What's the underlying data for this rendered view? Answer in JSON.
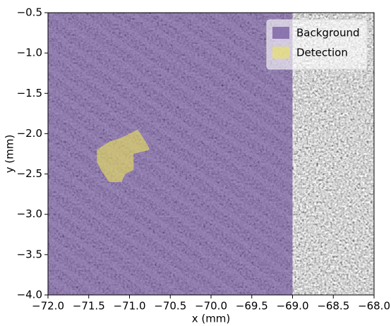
{
  "chart_data": {
    "type": "region",
    "xlabel": "x (mm)",
    "ylabel": "y (mm)",
    "xlim": [
      -72.0,
      -68.0
    ],
    "ylim": [
      -4.0,
      -0.5
    ],
    "xticks": [
      {
        "value": -72.0,
        "label": "−72.0"
      },
      {
        "value": -71.5,
        "label": "−71.5"
      },
      {
        "value": -71.0,
        "label": "−71.0"
      },
      {
        "value": -70.5,
        "label": "−70.5"
      },
      {
        "value": -70.0,
        "label": "−70.0"
      },
      {
        "value": -69.5,
        "label": "−69.5"
      },
      {
        "value": -69.0,
        "label": "−69.0"
      },
      {
        "value": -68.5,
        "label": "−68.5"
      },
      {
        "value": -68.0,
        "label": "−68.0"
      }
    ],
    "yticks": [
      {
        "value": -0.5,
        "label": "−0.5"
      },
      {
        "value": -1.0,
        "label": "−1.0"
      },
      {
        "value": -1.5,
        "label": "−1.5"
      },
      {
        "value": -2.0,
        "label": "−2.0"
      },
      {
        "value": -2.5,
        "label": "−2.5"
      },
      {
        "value": -3.0,
        "label": "−3.0"
      },
      {
        "value": -3.5,
        "label": "−3.5"
      },
      {
        "value": -4.0,
        "label": "−4.0"
      }
    ],
    "alpha": 0.6,
    "legend": "upper right",
    "series": [
      {
        "name": "Background",
        "color": "#5e3d8f",
        "x": [
          -72.0,
          -69.0,
          -69.0,
          -72.0
        ],
        "y": [
          -0.5,
          -0.5,
          -4.0,
          -4.0
        ]
      },
      {
        "name": "Detection",
        "color": "#ece45a",
        "x": [
          -71.4,
          -71.25,
          -71.1,
          -70.9,
          -70.8,
          -70.75,
          -70.95,
          -70.95,
          -71.05,
          -71.1,
          -71.25,
          -71.35,
          -71.4
        ],
        "y": [
          -2.2,
          -2.1,
          -2.05,
          -1.95,
          -2.1,
          -2.2,
          -2.25,
          -2.45,
          -2.5,
          -2.6,
          -2.6,
          -2.45,
          -2.35
        ]
      }
    ]
  }
}
